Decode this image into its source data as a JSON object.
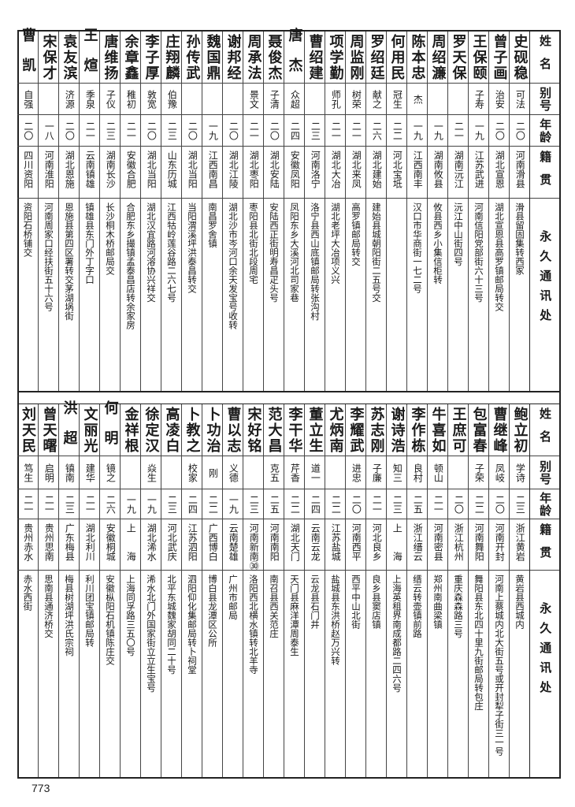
{
  "header": {
    "name": "姓名",
    "alias": "别号",
    "age": "年龄",
    "origin": "籍贯",
    "address": "永久通讯处"
  },
  "top": {
    "rows": [
      {
        "name": "史砚稳",
        "alias": "可法",
        "age": "二〇",
        "origin": "河南滑县",
        "address": "滑县留固集转西冢"
      },
      {
        "name": "曾子画",
        "alias": "治安",
        "age": "二〇",
        "origin": "湖北宣恩",
        "address": "湖北宣恩县高罗镇邮局转交"
      },
      {
        "name": "王保颐",
        "alias": "子寿",
        "age": "一九",
        "origin": "江苏武进",
        "address": "河南信阳党部街六十三号"
      },
      {
        "name": "罗天保",
        "alias": "",
        "age": "二一",
        "origin": "湖南沅江",
        "address": "沅江中山街四号"
      },
      {
        "name": "周绍濂",
        "alias": "",
        "age": "一九",
        "origin": "湖南攸县",
        "address": "攸县西乡小集信柜转"
      },
      {
        "name": "陈本忠",
        "alias": "杰",
        "age": "一九",
        "origin": "江西南丰",
        "address": "汉口市华商街一七二号"
      },
      {
        "name": "何用民",
        "alias": "冠生",
        "age": "二二",
        "origin": "河北宝坻",
        "address": ""
      },
      {
        "name": "罗绍廷",
        "alias": "献之",
        "age": "二六",
        "origin": "湖北建始",
        "address": "建始县城朝阳街二五号交"
      },
      {
        "name": "周监刚",
        "alias": "树荣",
        "age": "二一",
        "origin": "湖北来凤",
        "address": "高罗镇邮局转交"
      },
      {
        "name": "项学勤",
        "alias": "师孔",
        "age": "二一",
        "origin": "湖北大冶",
        "address": "湖北老坪大冶项义兴"
      },
      {
        "name": "曹绍建",
        "alias": "",
        "age": "二三",
        "origin": "河南洛宁",
        "address": "洛宁县西山底镇邮局转张沟村"
      },
      {
        "name": "唐杰",
        "alias": "众超",
        "age": "二四",
        "origin": "安徽凤阳",
        "address": "凤阳东乡大溪河北司家巷"
      },
      {
        "name": "聂俊杰",
        "alias": "子清",
        "age": "二〇",
        "origin": "湖北安陆",
        "address": "安陆西正街明寿昌疋头号"
      },
      {
        "name": "周承法",
        "alias": "景文",
        "age": "二一",
        "origin": "湖北枣阳",
        "address": "枣阳县北街北段周宅"
      },
      {
        "name": "谢邦经",
        "alias": "",
        "age": "二〇",
        "origin": "湖北江陵",
        "address": "湖北沙市岑河口余天发宝号收转"
      },
      {
        "name": "魏国鼎",
        "alias": "",
        "age": "一九",
        "origin": "江西南昌",
        "address": "南昌罗舍镇"
      },
      {
        "name": "孙传武",
        "alias": "",
        "age": "二〇",
        "origin": "湖北当阳",
        "address": "当阳渭溪坪洪泰昌转交"
      },
      {
        "name": "庄翔麟",
        "alias": "伯豫",
        "age": "二三",
        "origin": "山东历城",
        "address": "江西牯岭莲谷路二六七号"
      },
      {
        "name": "李子厚",
        "alias": "敦宽",
        "age": "二〇",
        "origin": "湖北当阳",
        "address": "湖北汉宜路河溶协兴祥交"
      },
      {
        "name": "余章鑫",
        "alias": "稚初",
        "age": "二一",
        "origin": "安徽合肥",
        "address": "合肥东乡撮镇孟泰昌店转余家房"
      },
      {
        "name": "唐维扬",
        "alias": "子仪",
        "age": "二三",
        "origin": "湖南长沙",
        "address": "长沙桐木桥邮局交"
      },
      {
        "name": "王煊",
        "alias": "季泉",
        "age": "二一",
        "origin": "云南镇雄",
        "address": "镇雄县东门外丁字口"
      },
      {
        "name": "袁友滨",
        "alias": "济源",
        "age": "二〇",
        "origin": "湖北恩施",
        "address": "恩施县第四区署转交茅湖埚街"
      },
      {
        "name": "宋保才",
        "alias": "",
        "age": "一八",
        "origin": "河南淮阳",
        "address": "河南周家口经扶街五十六号"
      },
      {
        "name": "曹凯",
        "alias": "自强",
        "age": "二〇",
        "origin": "四川资阳",
        "address": "资阳石桥铺交"
      }
    ]
  },
  "bottom": {
    "rows": [
      {
        "name": "鲍立初",
        "alias": "学诗",
        "age": "二三",
        "origin": "浙江黄岩",
        "address": "黄岩县西城内"
      },
      {
        "name": "曹继峰",
        "alias": "凤岐",
        "age": "二〇",
        "origin": "河南开封",
        "address": "河南上蔡城内北大街五号或开封犁子街三一号"
      },
      {
        "name": "包富春",
        "alias": "子荣",
        "age": "二二",
        "origin": "河南舞阳",
        "address": "舞阳县东北四十里九街邮局转包庄"
      },
      {
        "name": "王庶可",
        "alias": "",
        "age": "二〇",
        "origin": "浙江杭州",
        "address": "重庆森森路三号"
      },
      {
        "name": "牛喜如",
        "alias": "顿山",
        "age": "二一",
        "origin": "河南密县",
        "address": "郑州南曲梁镇"
      },
      {
        "name": "李作栋",
        "alias": "良村",
        "age": "二五",
        "origin": "浙江缙云",
        "address": "缙云转壶镇前路"
      },
      {
        "name": "谢诗浩",
        "alias": "知三",
        "age": "二三",
        "origin": "上　　海",
        "address": "上海英租界南成都路二四六号"
      },
      {
        "name": "苏志刚",
        "alias": "子廉",
        "age": "二一",
        "origin": "河北良乡",
        "address": "良乡县窦店镇"
      },
      {
        "name": "李耀武",
        "alias": "进忠",
        "age": "二〇",
        "origin": "河南西平",
        "address": "西平中山北街"
      },
      {
        "name": "尤炳南",
        "alias": "",
        "age": "二二",
        "origin": "江苏盐城",
        "address": "盐城县东洪桥赵万兴转"
      },
      {
        "name": "董立生",
        "alias": "道一",
        "age": "二四",
        "origin": "云南云龙",
        "address": "云龙县石门井"
      },
      {
        "name": "李干华",
        "alias": "芹香",
        "age": "二二",
        "origin": "湖北天门",
        "address": "天门县麻洋潭周泰生"
      },
      {
        "name": "范大昌",
        "alias": "克五",
        "age": "二五",
        "origin": "河南南阳",
        "address": "南召县西关范庄"
      },
      {
        "name": "宋好铭",
        "alias": "",
        "age": "二三",
        "origin": "河南新南㉚",
        "address": "洛阳西北横水镇转北羊寺"
      },
      {
        "name": "曹以志",
        "alias": "义德",
        "age": "一九",
        "origin": "云南楚雄",
        "address": "广州市邮局"
      },
      {
        "name": "卜功治",
        "alias": "刚",
        "age": "二二",
        "origin": "广西博白",
        "address": "博白县龙潭区公所"
      },
      {
        "name": "卜教之",
        "alias": "校家",
        "age": "二四",
        "origin": "江苏泗阳",
        "address": "泗阳仰化集邮局转卜祠堂"
      },
      {
        "name": "高凌白",
        "alias": "",
        "age": "二三",
        "origin": "河北武庆",
        "address": "北平东城魏家胡同二十号"
      },
      {
        "name": "徐定汉",
        "alias": "焱生",
        "age": "一九",
        "origin": "湖北浠水",
        "address": "浠水北门外国家街立立生宝号"
      },
      {
        "name": "金祥根",
        "alias": "",
        "age": "一九",
        "origin": "上　　海",
        "address": "上海同孚路三五〇号"
      },
      {
        "name": "何明",
        "alias": "镜之",
        "age": "二六",
        "origin": "安徽桐城",
        "address": "安徽枞阳石机镇陈庄交"
      },
      {
        "name": "文丽光",
        "alias": "建华",
        "age": "二一",
        "origin": "湖北利川",
        "address": "利川团宝镇邮局转"
      },
      {
        "name": "洪超",
        "alias": "镇南",
        "age": "二三",
        "origin": "广东梅县",
        "address": "梅县树湖坪洪氏宗祠"
      },
      {
        "name": "曾天曙",
        "alias": "启明",
        "age": "二一",
        "origin": "贵州思南",
        "address": "思南县通济桥交"
      },
      {
        "name": "刘天民",
        "alias": "笃生",
        "age": "二一",
        "origin": "贵州赤水",
        "address": "赤水西街"
      }
    ]
  },
  "page_number": "773"
}
